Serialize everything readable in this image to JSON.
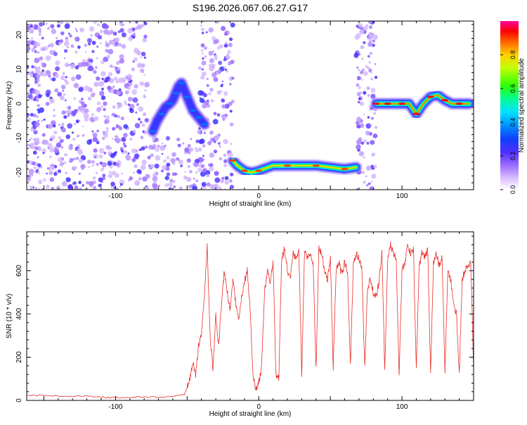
{
  "title": "S196.2026.067.06.27.G17",
  "chart_data": [
    {
      "type": "heatmap",
      "xlabel": "Height of straight line (km)",
      "ylabel": "Frequency (Hz)",
      "xlim": [
        -162,
        150
      ],
      "ylim": [
        -25,
        24
      ],
      "xticks": [
        -100,
        0,
        100
      ],
      "yticks": [
        -20,
        -10,
        0,
        10,
        20
      ],
      "colorbar": {
        "label": "Normalized spectral amplitude",
        "range": [
          0,
          1
        ],
        "ticks": [
          0.0,
          0.2,
          0.4,
          0.6,
          0.8
        ]
      },
      "features": [
        {
          "x": [
            -74,
            -71,
            -68,
            -65,
            -62,
            -60,
            -58,
            -56,
            -54,
            -52,
            -50,
            -48,
            -46,
            -44,
            -42,
            -40,
            -38
          ],
          "y": [
            -8,
            -5,
            -3,
            -1,
            0,
            1,
            3,
            5,
            6,
            4,
            2,
            0,
            -2,
            -3,
            -4,
            -5,
            -6
          ],
          "amplitude": 0.25
        },
        {
          "x": [
            -18,
            -15,
            -10,
            -5,
            0,
            10,
            20,
            30,
            40,
            50,
            60,
            68
          ],
          "y": [
            -16.5,
            -18,
            -19.5,
            -20,
            -19.5,
            -18,
            -18,
            -18,
            -18,
            -18.5,
            -19,
            -18.5
          ],
          "amplitude": 0.8
        },
        {
          "x": [
            82,
            85,
            90,
            95,
            100,
            105,
            110,
            115,
            120,
            125,
            130,
            135,
            140,
            147
          ],
          "y": [
            0,
            0,
            0,
            0,
            0,
            0,
            -3,
            0,
            2,
            2.5,
            1,
            0,
            0,
            0
          ],
          "amplitude": 0.85
        }
      ]
    },
    {
      "type": "line",
      "xlabel": "Height of straight line (km)",
      "ylabel": "SNR (10 * v/v)",
      "xlim": [
        -162,
        150
      ],
      "ylim": [
        0,
        780
      ],
      "xticks": [
        -100,
        0,
        100
      ],
      "yticks": [
        0,
        200,
        400,
        600
      ],
      "series": [
        {
          "color": "#e8302a",
          "x": [
            -162,
            -150,
            -140,
            -130,
            -120,
            -110,
            -100,
            -90,
            -80,
            -70,
            -60,
            -52,
            -50,
            -48,
            -46,
            -44,
            -42,
            -40,
            -38,
            -36,
            -34,
            -32,
            -30,
            -28,
            -26,
            -24,
            -22,
            -20,
            -18,
            -16,
            -14,
            -12,
            -10,
            -8,
            -6,
            -4,
            -2,
            0,
            2,
            4,
            6,
            8,
            10,
            12,
            14,
            16,
            18,
            20,
            22,
            24,
            26,
            28,
            30,
            32,
            34,
            36,
            38,
            40,
            42,
            44,
            46,
            48,
            50,
            52,
            54,
            56,
            58,
            60,
            62,
            64,
            66,
            68,
            70,
            72,
            74,
            76,
            78,
            80,
            82,
            84,
            86,
            88,
            90,
            92,
            94,
            96,
            98,
            100,
            102,
            104,
            106,
            108,
            110,
            112,
            114,
            116,
            118,
            120,
            122,
            124,
            126,
            128,
            130,
            132,
            134,
            136,
            138,
            140,
            142,
            144,
            146,
            148,
            150
          ],
          "y": [
            20,
            25,
            20,
            18,
            22,
            15,
            12,
            14,
            18,
            16,
            20,
            25,
            60,
            100,
            180,
            120,
            250,
            300,
            480,
            720,
            300,
            150,
            400,
            250,
            450,
            600,
            500,
            420,
            550,
            450,
            380,
            480,
            550,
            600,
            420,
            100,
            60,
            80,
            150,
            500,
            600,
            550,
            650,
            120,
            100,
            650,
            700,
            600,
            560,
            680,
            650,
            700,
            120,
            700,
            660,
            680,
            640,
            140,
            700,
            680,
            600,
            560,
            660,
            150,
            600,
            640,
            580,
            640,
            600,
            160,
            620,
            680,
            660,
            600,
            150,
            520,
            560,
            500,
            480,
            550,
            680,
            130,
            650,
            720,
            680,
            660,
            120,
            600,
            640,
            720,
            680,
            700,
            140,
            620,
            680,
            660,
            700,
            120,
            640,
            680,
            620,
            660,
            140,
            600,
            560,
            460,
            400,
            120,
            560,
            600,
            620,
            640,
            150
          ]
        }
      ]
    }
  ]
}
